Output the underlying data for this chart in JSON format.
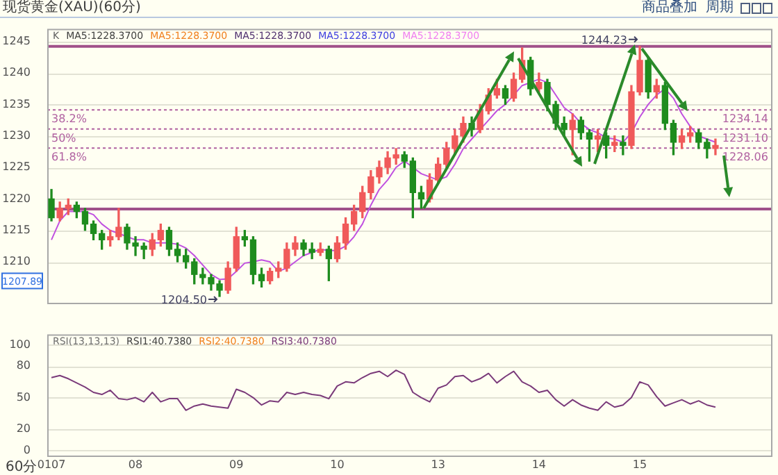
{
  "chart_data": [
    {
      "type": "candlestick",
      "title": "现货黄金(XAU)(60分)",
      "annotations": [
        "商品叠加",
        "周期",
        "K",
        "MA5:1228.3700",
        "MA5:1228.3700",
        "MA5:1228.3700",
        "MA5:1228.3700",
        "MA5:1228.3700",
        {
          "text": "1244.23",
          "y": 1244.23
        },
        "1204.50",
        "1207.89",
        {
          "text": "38.2%",
          "y": 1234.14
        },
        {
          "text": "50%",
          "y": 1231.1
        },
        {
          "text": "61.8%",
          "y": 1228.06
        }
      ],
      "categories": [
        "0107",
        null,
        null,
        null,
        null,
        null,
        null,
        null,
        null,
        null,
        "08",
        null,
        null,
        null,
        null,
        null,
        null,
        null,
        null,
        null,
        null,
        null,
        "09",
        null,
        null,
        null,
        null,
        null,
        null,
        null,
        null,
        null,
        null,
        null,
        "10",
        null,
        null,
        null,
        null,
        null,
        null,
        null,
        null,
        null,
        null,
        null,
        "13",
        null,
        null,
        null,
        null,
        null,
        null,
        null,
        null,
        null,
        null,
        null,
        "14",
        null,
        null,
        null,
        null,
        null,
        null,
        null,
        null,
        null,
        null,
        null,
        "15",
        null,
        null,
        null,
        null,
        null,
        null,
        null,
        null,
        null
      ],
      "ohlc": [
        [
          1220,
          1221.5,
          1216.5,
          1217
        ],
        [
          1217,
          1219.5,
          1216.5,
          1218.5
        ],
        [
          1218.5,
          1220,
          1217.5,
          1219
        ],
        [
          1219,
          1219.5,
          1217,
          1218
        ],
        [
          1218,
          1218.5,
          1215,
          1216
        ],
        [
          1216,
          1216.5,
          1213.5,
          1214.5
        ],
        [
          1214.5,
          1215,
          1212,
          1213.5
        ],
        [
          1213.5,
          1215,
          1212.5,
          1214
        ],
        [
          1214,
          1218.5,
          1213.5,
          1215.5
        ],
        [
          1215.5,
          1216,
          1212,
          1213
        ],
        [
          1213,
          1214,
          1211,
          1212.5
        ],
        [
          1212.5,
          1213,
          1210.5,
          1212
        ],
        [
          1212,
          1214.5,
          1211,
          1213.5
        ],
        [
          1213.5,
          1216,
          1212.5,
          1215
        ],
        [
          1215,
          1215.5,
          1211,
          1212
        ],
        [
          1212,
          1213,
          1210,
          1211
        ],
        [
          1211,
          1212,
          1209,
          1210
        ],
        [
          1210,
          1210.5,
          1206.5,
          1208
        ],
        [
          1208,
          1209,
          1206.5,
          1207.5
        ],
        [
          1207.5,
          1208,
          1205.5,
          1206.5
        ],
        [
          1206.5,
          1207,
          1204.5,
          1205.5
        ],
        [
          1205.5,
          1210,
          1205,
          1209
        ],
        [
          1209,
          1215.5,
          1208.5,
          1214
        ],
        [
          1214,
          1215,
          1212.5,
          1213.5
        ],
        [
          1213.5,
          1214,
          1206.5,
          1208
        ],
        [
          1208,
          1209,
          1206,
          1207
        ],
        [
          1207,
          1209,
          1206.5,
          1208.5
        ],
        [
          1208.5,
          1210,
          1207.5,
          1209
        ],
        [
          1209,
          1213,
          1208.5,
          1212
        ],
        [
          1212,
          1214,
          1211,
          1213
        ],
        [
          1213,
          1213.5,
          1211,
          1212
        ],
        [
          1212,
          1213,
          1210.5,
          1211.5
        ],
        [
          1211.5,
          1213,
          1211,
          1212
        ],
        [
          1212,
          1212.5,
          1207,
          1210.5
        ],
        [
          1210.5,
          1214,
          1210,
          1213
        ],
        [
          1213,
          1217,
          1212,
          1216
        ],
        [
          1216,
          1219,
          1215,
          1218
        ],
        [
          1218,
          1222,
          1217,
          1221
        ],
        [
          1221,
          1224.5,
          1220,
          1223.5
        ],
        [
          1223.5,
          1226,
          1222.5,
          1225
        ],
        [
          1225,
          1227.5,
          1224,
          1226.5
        ],
        [
          1226.5,
          1228,
          1225.5,
          1227
        ],
        [
          1227,
          1227.5,
          1225,
          1226
        ],
        [
          1226,
          1226.5,
          1217,
          1221
        ],
        [
          1221,
          1222,
          1218.5,
          1220
        ],
        [
          1220,
          1224,
          1219.5,
          1223
        ],
        [
          1223,
          1226.5,
          1222.5,
          1225.5
        ],
        [
          1225.5,
          1229,
          1225,
          1228
        ],
        [
          1228,
          1231,
          1227,
          1230
        ],
        [
          1230,
          1233,
          1229,
          1232
        ],
        [
          1232,
          1233,
          1230,
          1231
        ],
        [
          1231,
          1235,
          1230.5,
          1234
        ],
        [
          1234,
          1237.5,
          1233.5,
          1236.5
        ],
        [
          1236.5,
          1239,
          1236,
          1237.5
        ],
        [
          1237.5,
          1238,
          1235,
          1236
        ],
        [
          1236,
          1240,
          1235.5,
          1239
        ],
        [
          1239,
          1244,
          1238.5,
          1242
        ],
        [
          1242,
          1242.5,
          1236.5,
          1237.5
        ],
        [
          1237.5,
          1240,
          1237,
          1238.5
        ],
        [
          1238.5,
          1239,
          1234,
          1235
        ],
        [
          1235,
          1235.5,
          1231,
          1232
        ],
        [
          1232,
          1233,
          1230,
          1231
        ],
        [
          1231,
          1233.5,
          1227,
          1232.5
        ],
        [
          1232.5,
          1233,
          1229.5,
          1230.5
        ],
        [
          1230.5,
          1231,
          1226,
          1229.5
        ],
        [
          1229.5,
          1231,
          1227.5,
          1230
        ],
        [
          1230,
          1230.5,
          1226.5,
          1228.5
        ],
        [
          1228.5,
          1230,
          1227.5,
          1229
        ],
        [
          1229,
          1230,
          1227,
          1228.5
        ],
        [
          1228.5,
          1238,
          1228,
          1237
        ],
        [
          1237,
          1244.23,
          1236.5,
          1242
        ],
        [
          1242,
          1242.5,
          1236,
          1237
        ],
        [
          1237,
          1239,
          1236,
          1238
        ],
        [
          1238,
          1238.5,
          1231,
          1232
        ],
        [
          1232,
          1232.5,
          1227,
          1229
        ],
        [
          1229,
          1231,
          1228,
          1230
        ],
        [
          1230,
          1231.5,
          1229,
          1230.5
        ],
        [
          1230.5,
          1231,
          1228,
          1229
        ],
        [
          1229,
          1229.5,
          1226.5,
          1228
        ],
        [
          1228,
          1229.5,
          1227,
          1228.5
        ]
      ],
      "colors": [
        "#1e8c1e",
        "#f05a5a",
        "#f05a5a",
        "#1e8c1e",
        "#1e8c1e",
        "#1e8c1e",
        "#1e8c1e",
        "#f05a5a",
        "#f05a5a",
        "#1e8c1e",
        "#1e8c1e",
        "#1e8c1e",
        "#f05a5a",
        "#f05a5a",
        "#1e8c1e",
        "#1e8c1e",
        "#1e8c1e",
        "#1e8c1e",
        "#1e8c1e",
        "#1e8c1e",
        "#1e8c1e",
        "#f05a5a",
        "#f05a5a",
        "#1e8c1e",
        "#1e8c1e",
        "#1e8c1e",
        "#f05a5a",
        "#f05a5a",
        "#f05a5a",
        "#f05a5a",
        "#1e8c1e",
        "#1e8c1e",
        "#f05a5a",
        "#1e8c1e",
        "#f05a5a",
        "#f05a5a",
        "#f05a5a",
        "#f05a5a",
        "#f05a5a",
        "#f05a5a",
        "#f05a5a",
        "#f05a5a",
        "#1e8c1e",
        "#1e8c1e",
        "#1e8c1e",
        "#f05a5a",
        "#f05a5a",
        "#f05a5a",
        "#f05a5a",
        "#f05a5a",
        "#1e8c1e",
        "#f05a5a",
        "#f05a5a",
        "#f05a5a",
        "#1e8c1e",
        "#f05a5a",
        "#f05a5a",
        "#1e8c1e",
        "#f05a5a",
        "#1e8c1e",
        "#1e8c1e",
        "#1e8c1e",
        "#f05a5a",
        "#1e8c1e",
        "#1e8c1e",
        "#f05a5a",
        "#1e8c1e",
        "#f05a5a",
        "#1e8c1e",
        "#f05a5a",
        "#f05a5a",
        "#1e8c1e",
        "#f05a5a",
        "#1e8c1e",
        "#1e8c1e",
        "#f05a5a",
        "#f05a5a",
        "#1e8c1e",
        "#1e8c1e",
        "#f05a5a"
      ],
      "series": [
        {
          "type": "line",
          "color": "#c050e0",
          "values": [
            1213.5,
            1216.5,
            1218,
            1218,
            1218,
            1217.5,
            1216,
            1215,
            1214.5,
            1214,
            1213.5,
            1213.5,
            1213,
            1213,
            1213,
            1212.8,
            1212.2,
            1211,
            1209.5,
            1208,
            1207.2,
            1207.3,
            1208.5,
            1209.8,
            1210,
            1210.3,
            1210,
            1208.5,
            1209,
            1210,
            1211,
            1211.5,
            1212,
            1211.8,
            1211.8,
            1212.5,
            1214,
            1216,
            1219,
            1221.5,
            1223,
            1225,
            1226,
            1225,
            1224,
            1223.5,
            1223,
            1223.5,
            1225.5,
            1228,
            1229.5,
            1231,
            1232.5,
            1234,
            1235,
            1236.5,
            1238,
            1238.5,
            1239,
            1238.5,
            1236.5,
            1234.5,
            1233.5,
            1232,
            1231,
            1230.5,
            1229.7,
            1229.5,
            1229,
            1230.5,
            1233,
            1235,
            1236.5,
            1237.5,
            1236,
            1233.5,
            1231.5,
            1230,
            1229.5,
            1229
          ]
        }
      ],
      "marker": "none",
      "ylim": [
        1203.5,
        1247
      ],
      "yticks": [
        1210,
        1215,
        1220,
        1225,
        1230,
        1235,
        1240,
        1245
      ],
      "grid": "y",
      "tick_labels": "y",
      "ref_lines": [
        {
          "axis": "y",
          "value": 1244.23,
          "color": "#a0508a",
          "line_style": "solid"
        },
        {
          "axis": "y",
          "value": 1218.4,
          "color": "#a0508a",
          "line_style": "solid"
        },
        {
          "axis": "y",
          "value": 1234.14,
          "label": "1234.14",
          "color": "#b060a0",
          "line_style": "dotted"
        },
        {
          "axis": "y",
          "value": 1231.1,
          "label": "1231.10",
          "color": "#b060a0",
          "line_style": "dotted"
        },
        {
          "axis": "y",
          "value": 1228.06,
          "label": "1228.06",
          "color": "#b060a0",
          "line_style": "dotted"
        }
      ]
    },
    {
      "type": "line",
      "annotations": [
        "60分",
        "RSI(13,13,13)",
        "RSI1:40.7380",
        "RSI2:40.7380",
        "RSI3:40.7380"
      ],
      "categories": [
        "0107",
        null,
        null,
        null,
        null,
        null,
        null,
        null,
        null,
        null,
        "08",
        null,
        null,
        null,
        null,
        null,
        null,
        null,
        null,
        null,
        null,
        null,
        "09",
        null,
        null,
        null,
        null,
        null,
        null,
        null,
        null,
        null,
        null,
        null,
        "10",
        null,
        null,
        null,
        null,
        null,
        null,
        null,
        null,
        null,
        null,
        null,
        "13",
        null,
        null,
        null,
        null,
        null,
        null,
        null,
        null,
        null,
        null,
        null,
        "14",
        null,
        null,
        null,
        null,
        null,
        null,
        null,
        null,
        null,
        null,
        null,
        "15",
        null,
        null,
        null,
        null,
        null,
        null,
        null,
        null,
        null
      ],
      "series": [
        {
          "color": "#7a3a7a",
          "values": [
            69,
            71,
            68,
            64,
            60,
            55,
            53,
            57,
            49,
            48,
            50,
            46,
            55,
            46,
            49,
            49,
            38,
            42,
            44,
            42,
            41,
            40,
            58,
            55,
            50,
            43,
            47,
            46,
            55,
            53,
            55,
            53,
            52,
            49,
            61,
            65,
            64,
            69,
            73,
            75,
            70,
            76,
            72,
            55,
            50,
            46,
            59,
            62,
            70,
            71,
            65,
            68,
            73,
            64,
            70,
            75,
            65,
            61,
            55,
            57,
            48,
            42,
            48,
            43,
            40,
            38,
            46,
            41,
            43,
            50,
            65,
            62,
            51,
            42,
            45,
            48,
            44,
            47,
            43,
            41
          ]
        }
      ],
      "marker": "none",
      "ylim": [
        -5,
        110
      ],
      "yticks": [
        0,
        20,
        50,
        80,
        100
      ],
      "grid": "y"
    }
  ]
}
